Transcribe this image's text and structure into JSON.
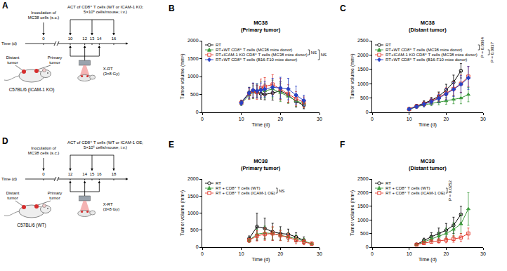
{
  "schematics": [
    {
      "panel": "A",
      "inoculation": [
        "Inoculation of",
        "MC38 cells (s.c.)"
      ],
      "act": [
        "ACT of CD8⁺ T cells (WT or ICAM-1 KO;",
        "5×10⁶ cells/mouse; i.v.)"
      ],
      "time_label": "Time (d)",
      "days": [
        {
          "day": 0,
          "inoculation": true
        },
        {
          "day": 10,
          "act": true,
          "rt": true
        },
        {
          "day": 12,
          "rt": true
        },
        {
          "day": 13,
          "act": true
        },
        {
          "day": 14,
          "rt": true
        },
        {
          "day": 16,
          "act": true
        }
      ],
      "xrt": [
        "X-RT",
        "(3×8 Gy)"
      ],
      "distant": [
        "Distant",
        "tumor"
      ],
      "primary": [
        "Primary",
        "tumor"
      ],
      "strain": "C57BL/6 (ICAM-1 KO)"
    },
    {
      "panel": "D",
      "inoculation": [
        "Inoculation of",
        "MC38 cells (s.c.)"
      ],
      "act": [
        "ACT of CD8⁺ T cells (WT or ICAM-1 OE;",
        "5×10⁶ cells/mouse; i.v.)"
      ],
      "time_label": "Time (d)",
      "days": [
        {
          "day": 0,
          "inoculation": true
        },
        {
          "day": 12,
          "act": true,
          "rt": true
        },
        {
          "day": 14,
          "rt": true
        },
        {
          "day": 15,
          "act": true
        },
        {
          "day": 16,
          "rt": true
        },
        {
          "day": 18,
          "act": true
        }
      ],
      "xrt": [
        "X-RT",
        "(3×8 Gy)"
      ],
      "distant": [
        "Distant",
        "tumor"
      ],
      "primary": [
        "Primary",
        "tumor"
      ],
      "strain": "C57BL/6 (WT)"
    }
  ],
  "chart_data": [
    {
      "panel": "B",
      "type": "line",
      "title": "MC38\n(Primary tumor)",
      "x_label": "Time (d)",
      "y_label": "Tumor volume (mm³)",
      "xlim": [
        0,
        30
      ],
      "xticks": [
        0,
        10,
        20,
        30
      ],
      "ylim": [
        0,
        2000
      ],
      "yticks": [
        0,
        500,
        1000,
        1500,
        2000
      ],
      "grid": false,
      "legend": "upper left",
      "x": [
        10,
        12,
        13,
        14,
        15,
        16,
        18,
        20,
        22,
        24,
        26
      ],
      "series": [
        {
          "name": "RT",
          "color": "#000000",
          "marker": "circle-open",
          "values": [
            280,
            550,
            600,
            580,
            520,
            500,
            540,
            600,
            480,
            300,
            200
          ],
          "error": [
            60,
            150,
            200,
            180,
            150,
            150,
            200,
            250,
            200,
            150,
            100
          ]
        },
        {
          "name": "RT+WT CD8⁺ T cells (MC38 mice donor)",
          "color": "#3c9a3c",
          "marker": "triangle-up",
          "values": [
            250,
            480,
            560,
            600,
            650,
            600,
            650,
            550,
            450,
            320,
            250
          ],
          "error": [
            60,
            120,
            180,
            200,
            220,
            200,
            250,
            250,
            200,
            150,
            100
          ]
        },
        {
          "name": "RT+ICAM-1 KO CD8⁺ T cells (MC38 mice donor)",
          "color": "#e33b2e",
          "marker": "square-open",
          "values": [
            270,
            520,
            600,
            560,
            680,
            720,
            780,
            650,
            520,
            380,
            280
          ],
          "error": [
            60,
            150,
            200,
            200,
            250,
            250,
            270,
            300,
            250,
            200,
            150
          ]
        },
        {
          "name": "RT+WT CD8⁺ T cells (B16-F10 mice donor)",
          "color": "#2941c4",
          "marker": "diamond",
          "values": [
            260,
            540,
            620,
            600,
            620,
            650,
            700,
            680,
            650,
            480,
            330
          ],
          "error": [
            60,
            150,
            200,
            200,
            200,
            220,
            250,
            300,
            300,
            250,
            150
          ]
        }
      ],
      "comparisons": [
        {
          "series": [
            1,
            2
          ],
          "label": "NS"
        },
        {
          "series": [
            1,
            3
          ],
          "label": "NS"
        }
      ]
    },
    {
      "panel": "C",
      "type": "line",
      "title": "MC38\n(Distant tumor)",
      "x_label": "Time (d)",
      "y_label": "Tumor volume (mm³)",
      "xlim": [
        0,
        30
      ],
      "xticks": [
        0,
        10,
        20,
        30
      ],
      "ylim": [
        0,
        2500
      ],
      "yticks": [
        0,
        500,
        1000,
        1500,
        2000,
        2500
      ],
      "grid": false,
      "legend": "upper left",
      "x": [
        10,
        12,
        14,
        16,
        18,
        20,
        22,
        24,
        26
      ],
      "series": [
        {
          "name": "RT",
          "color": "#000000",
          "marker": "circle-open",
          "values": [
            120,
            220,
            320,
            420,
            560,
            780,
            1050,
            1450,
            null
          ],
          "error": [
            40,
            60,
            80,
            100,
            150,
            200,
            250,
            250,
            null
          ]
        },
        {
          "name": "RT+WT CD8⁺ T cells (MC38 mice donor)",
          "color": "#3c9a3c",
          "marker": "triangle-up",
          "values": [
            100,
            190,
            260,
            310,
            360,
            400,
            450,
            500,
            620
          ],
          "error": [
            30,
            50,
            70,
            80,
            100,
            120,
            150,
            200,
            250
          ]
        },
        {
          "name": "RT+ICAM-1 KO CD8⁺ T cells (MC38 mice donor)",
          "color": "#e33b2e",
          "marker": "square-open",
          "values": [
            110,
            210,
            290,
            390,
            520,
            660,
            820,
            1000,
            1250
          ],
          "error": [
            30,
            60,
            80,
            100,
            150,
            200,
            250,
            300,
            350
          ]
        },
        {
          "name": "RT+WT CD8⁺ T cells (B16-F10 mice donor)",
          "color": "#2941c4",
          "marker": "diamond",
          "values": [
            110,
            200,
            280,
            370,
            490,
            640,
            800,
            980,
            1200
          ],
          "error": [
            30,
            60,
            80,
            100,
            140,
            200,
            250,
            300,
            400
          ]
        }
      ],
      "comparisons": [
        {
          "series": [
            0,
            1
          ],
          "label": "P = 0.0064"
        },
        {
          "series": [
            1,
            2
          ],
          "label": "P = 0.0037"
        }
      ]
    },
    {
      "panel": "E",
      "type": "line",
      "title": "MC38\n(Primary tumor)",
      "x_label": "Time (d)",
      "y_label": "Tumor volume (mm³)",
      "xlim": [
        0,
        30
      ],
      "xticks": [
        0,
        10,
        20,
        30
      ],
      "ylim": [
        0,
        2000
      ],
      "yticks": [
        0,
        500,
        1000,
        1500,
        2000
      ],
      "grid": false,
      "legend": "upper left",
      "x": [
        12,
        14,
        16,
        18,
        20,
        22,
        24,
        26,
        28
      ],
      "series": [
        {
          "name": "RT",
          "color": "#000000",
          "marker": "circle-open",
          "values": [
            250,
            600,
            550,
            450,
            400,
            380,
            300,
            200,
            null
          ],
          "error": [
            80,
            400,
            300,
            250,
            200,
            150,
            120,
            100,
            null
          ]
        },
        {
          "name": "RT + CD8⁺ T cells (WT)",
          "color": "#3c9a3c",
          "marker": "triangle-up",
          "values": [
            200,
            380,
            420,
            400,
            350,
            300,
            250,
            180,
            100
          ],
          "error": [
            60,
            150,
            200,
            180,
            150,
            120,
            100,
            80,
            50
          ]
        },
        {
          "name": "RT + CD8⁺ T cells (ICAM-1 OE)",
          "color": "#e33b2e",
          "marker": "square-open",
          "values": [
            200,
            330,
            380,
            400,
            340,
            290,
            200,
            150,
            100
          ],
          "error": [
            60,
            150,
            180,
            200,
            150,
            120,
            100,
            80,
            50
          ]
        }
      ],
      "comparisons": [
        {
          "series": [
            1,
            2
          ],
          "label": "NS"
        }
      ]
    },
    {
      "panel": "F",
      "type": "line",
      "title": "MC38\n(Distant tumor)",
      "x_label": "Time (d)",
      "y_label": "Tumor volume (mm³)",
      "xlim": [
        0,
        30
      ],
      "xticks": [
        0,
        10,
        20,
        30
      ],
      "ylim": [
        0,
        2500
      ],
      "yticks": [
        0,
        500,
        1000,
        1500,
        2000,
        2500
      ],
      "grid": false,
      "legend": "upper left",
      "x": [
        12,
        14,
        16,
        18,
        20,
        22,
        24,
        26
      ],
      "series": [
        {
          "name": "RT",
          "color": "#000000",
          "marker": "circle-open",
          "values": [
            100,
            250,
            380,
            500,
            620,
            800,
            1200,
            null
          ],
          "error": [
            30,
            80,
            150,
            200,
            250,
            300,
            300,
            null
          ]
        },
        {
          "name": "RT + CD8⁺ T cells (WT)",
          "color": "#3c9a3c",
          "marker": "triangle-up",
          "values": [
            80,
            200,
            300,
            400,
            500,
            650,
            850,
            1400
          ],
          "error": [
            30,
            60,
            100,
            150,
            200,
            250,
            350,
            600
          ]
        },
        {
          "name": "RT + CD8⁺ T cells (ICAM-1 OE)",
          "color": "#e33b2e",
          "marker": "square-open",
          "values": [
            90,
            150,
            200,
            230,
            260,
            300,
            350,
            500
          ],
          "error": [
            30,
            50,
            60,
            80,
            100,
            120,
            150,
            200
          ]
        }
      ],
      "comparisons": [
        {
          "series": [
            1,
            2
          ],
          "label": "P = 0.0252"
        }
      ]
    }
  ]
}
